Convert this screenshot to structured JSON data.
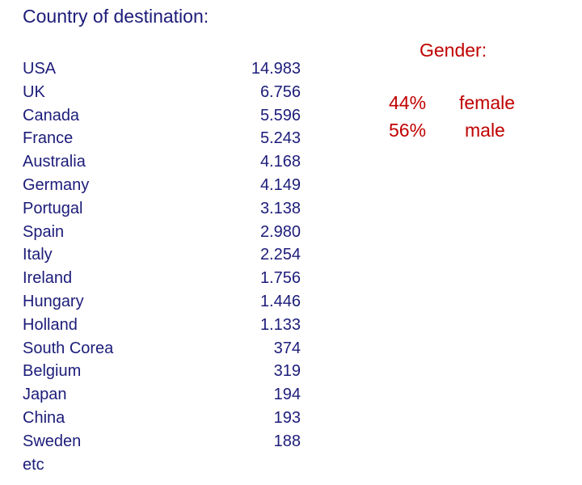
{
  "title": "Country of destination:",
  "countries": [
    {
      "name": "USA",
      "value": "14.983"
    },
    {
      "name": "UK",
      "value": "6.756"
    },
    {
      "name": "Canada",
      "value": "5.596"
    },
    {
      "name": "France",
      "value": "5.243"
    },
    {
      "name": "Australia",
      "value": "4.168"
    },
    {
      "name": "Germany",
      "value": "4.149"
    },
    {
      "name": "Portugal",
      "value": "3.138"
    },
    {
      "name": "Spain",
      "value": "2.980"
    },
    {
      "name": "Italy",
      "value": "2.254"
    },
    {
      "name": "Ireland",
      "value": "1.756"
    },
    {
      "name": "Hungary",
      "value": "1.446"
    },
    {
      "name": "Holland",
      "value": "1.133"
    },
    {
      "name": "South Corea",
      "value": "374"
    },
    {
      "name": "Belgium",
      "value": "319"
    },
    {
      "name": "Japan",
      "value": "194"
    },
    {
      "name": "China",
      "value": "193"
    },
    {
      "name": "Sweden",
      "value": "188"
    },
    {
      "name": "etc"
    }
  ],
  "gender": {
    "title": "Gender:",
    "rows": [
      {
        "percent": "44%",
        "label": "female"
      },
      {
        "percent": "56%",
        "label": "male"
      }
    ]
  }
}
